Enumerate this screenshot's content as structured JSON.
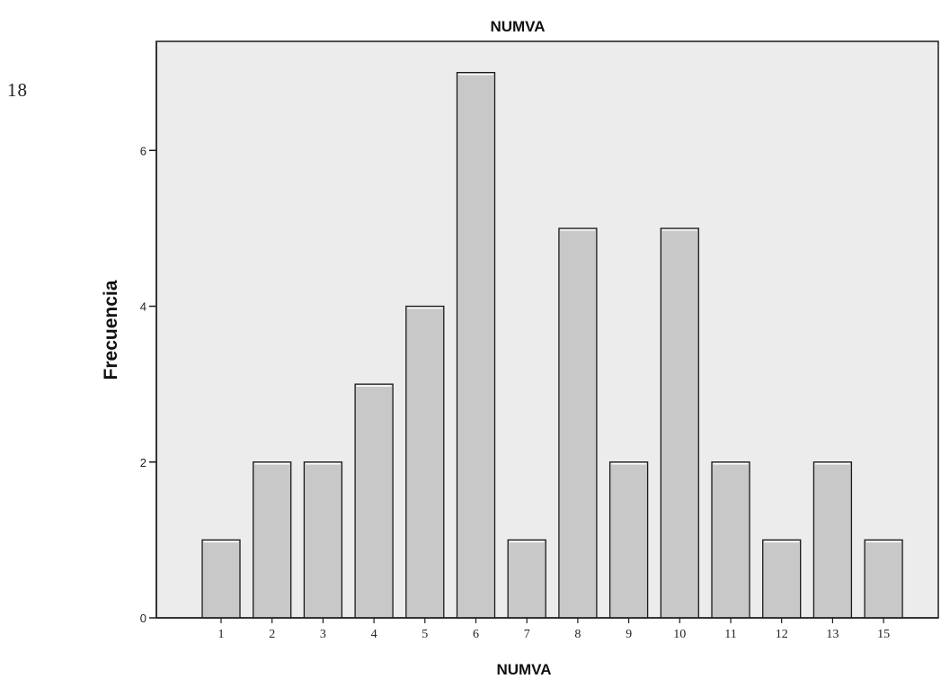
{
  "page_number": "18",
  "chart_data": {
    "type": "bar",
    "title": "NUMVA",
    "xlabel": "NUMVA",
    "ylabel": "Frecuencia",
    "categories": [
      "1",
      "2",
      "3",
      "4",
      "5",
      "6",
      "7",
      "8",
      "9",
      "10",
      "11",
      "12",
      "13",
      "15"
    ],
    "values": [
      1,
      2,
      2,
      3,
      4,
      7,
      1,
      5,
      2,
      5,
      2,
      1,
      2,
      1
    ],
    "ylim": [
      0,
      7.4
    ],
    "yticks": [
      0,
      2,
      4,
      6
    ],
    "grid": false,
    "colors": {
      "plot_background": "#ececec",
      "bar_fill": "#c8c8c8",
      "bar_stroke": "#1a1a1a",
      "axis": "#1a1a1a"
    }
  }
}
